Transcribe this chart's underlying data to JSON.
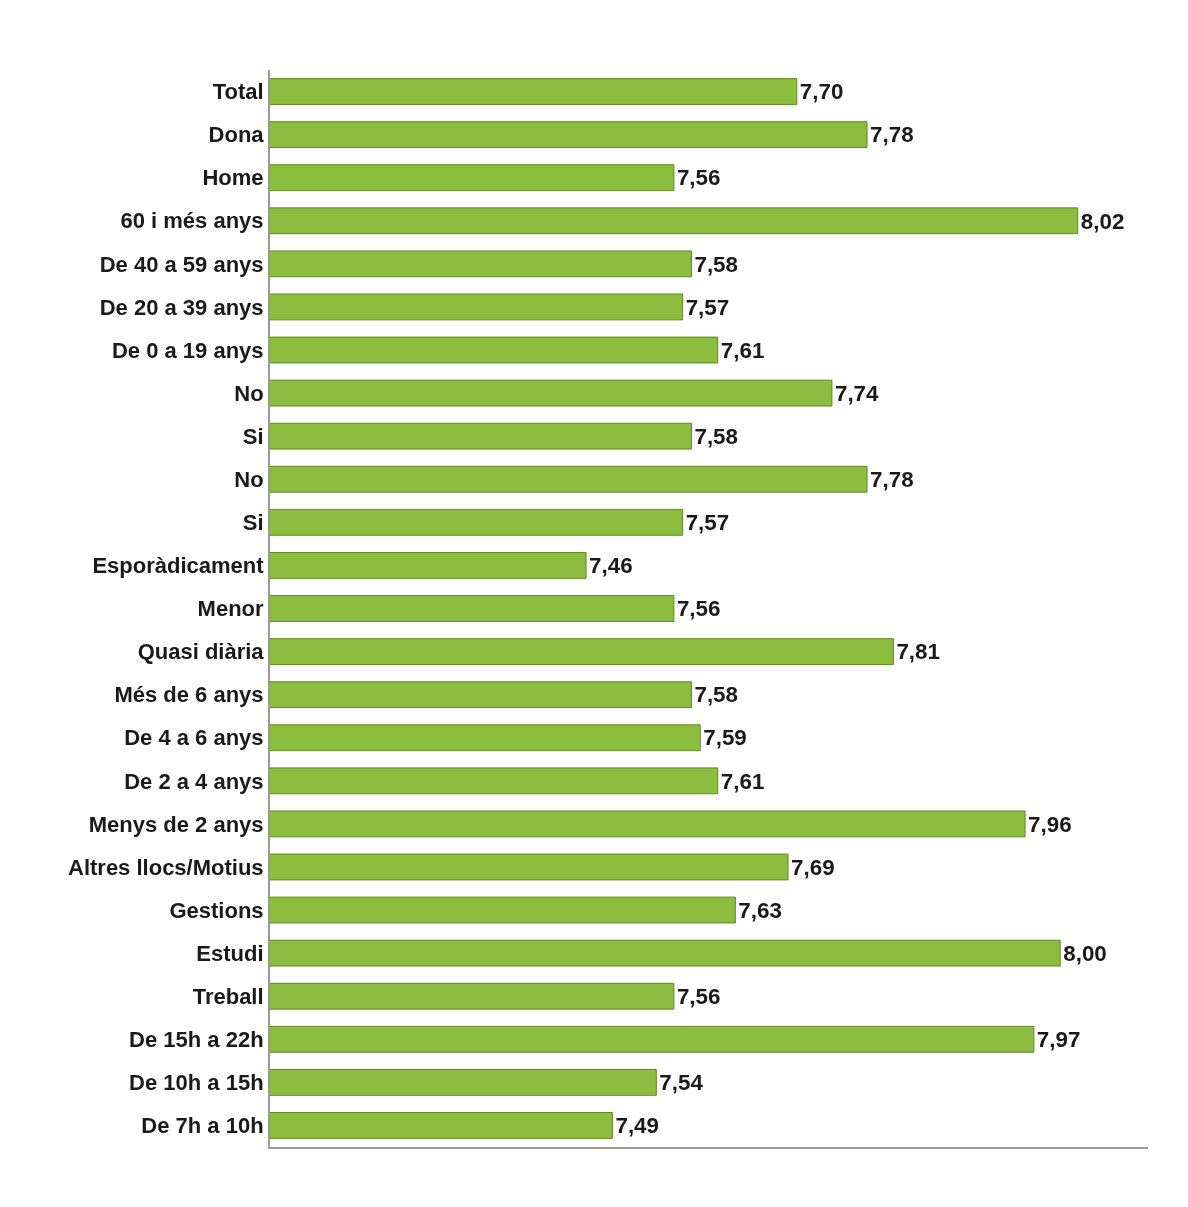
{
  "chart_data": {
    "type": "bar",
    "orientation": "horizontal",
    "categories": [
      "Total",
      "Dona",
      "Home",
      "60 i més anys",
      "De 40 a 59 anys",
      "De 20 a 39 anys",
      "De 0 a 19 anys",
      "No",
      "Si",
      "No",
      "Si",
      "Esporàdicament",
      "Menor",
      "Quasi diària",
      "Més de 6 anys",
      "De 4 a 6 anys",
      "De 2 a 4 anys",
      "Menys de 2 anys",
      "Altres llocs/Motius",
      "Gestions",
      "Estudi",
      "Treball",
      "De 15h a 22h",
      "De 10h a 15h",
      "De 7h a 10h"
    ],
    "values": [
      7.7,
      7.78,
      7.56,
      8.02,
      7.58,
      7.57,
      7.61,
      7.74,
      7.58,
      7.78,
      7.57,
      7.46,
      7.56,
      7.81,
      7.58,
      7.59,
      7.61,
      7.96,
      7.69,
      7.63,
      8.0,
      7.56,
      7.97,
      7.54,
      7.49
    ],
    "value_labels": [
      "7,70",
      "7,78",
      "7,56",
      "8,02",
      "7,58",
      "7,57",
      "7,61",
      "7,74",
      "7,58",
      "7,78",
      "7,57",
      "7,46",
      "7,56",
      "7,81",
      "7,58",
      "7,59",
      "7,61",
      "7,96",
      "7,69",
      "7,63",
      "8,00",
      "7,56",
      "7,97",
      "7,54",
      "7,49"
    ],
    "color": "#8cbd3f",
    "xlim": [
      7.1,
      8.1
    ],
    "tick_labels": "y"
  }
}
